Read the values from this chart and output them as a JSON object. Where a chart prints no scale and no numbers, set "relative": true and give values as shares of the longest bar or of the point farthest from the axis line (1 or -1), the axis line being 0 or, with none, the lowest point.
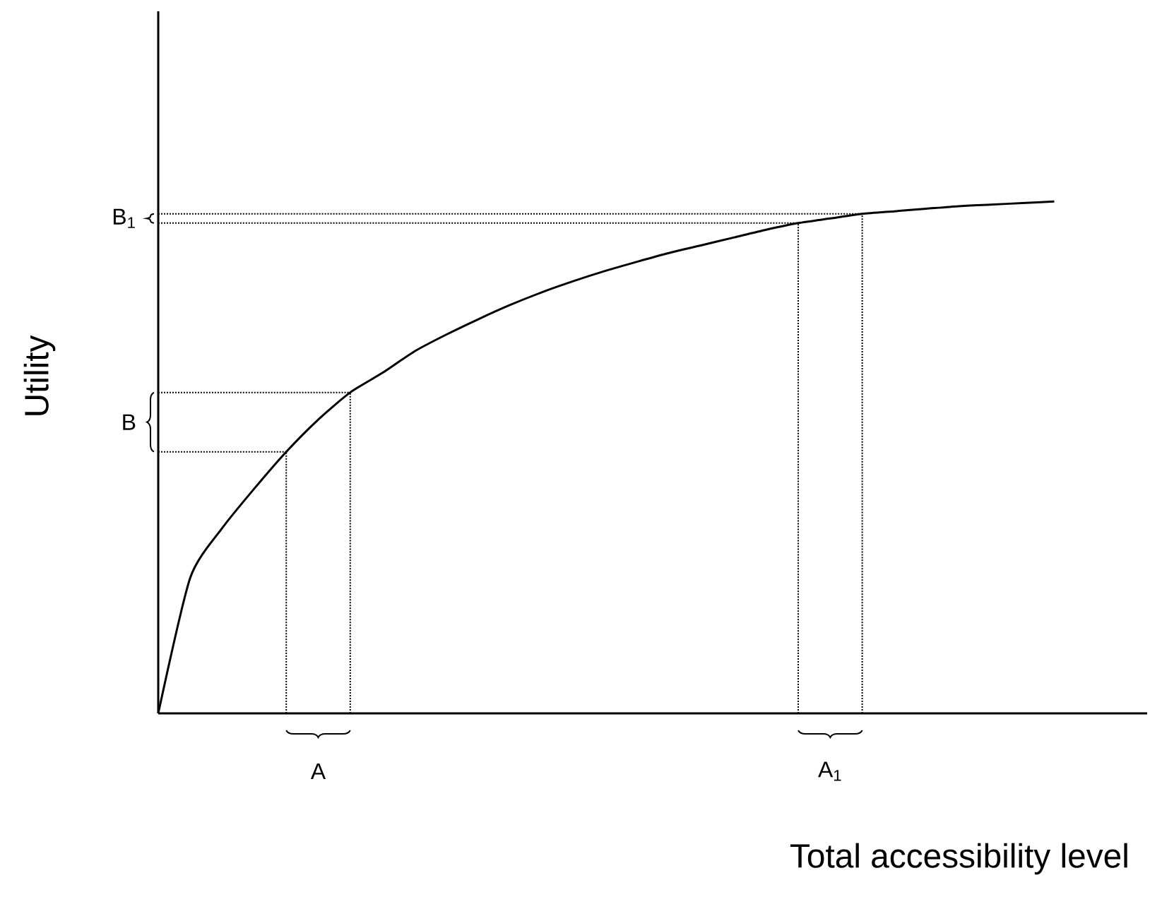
{
  "chart_data": {
    "type": "line",
    "relative": true,
    "xlabel": "Total accessibility level",
    "ylabel": "Utility",
    "categories": [
      null,
      null,
      null,
      null,
      null,
      null,
      null,
      null,
      null,
      null,
      null,
      null,
      null,
      null,
      null,
      null,
      null,
      null,
      null,
      null,
      null,
      null,
      null,
      null,
      null,
      null,
      null,
      null,
      null,
      null,
      null
    ],
    "series": [
      {
        "color": "#000000",
        "values": [
          0,
          0.265,
          0.362,
          0.439,
          0.511,
          0.574,
          0.627,
          0.665,
          0.707,
          0.74,
          0.77,
          0.798,
          0.823,
          0.845,
          0.865,
          0.883,
          0.9,
          0.915,
          0.93,
          0.945,
          0.958,
          0.967,
          0.976,
          0.981,
          0.986,
          0.991,
          0.994,
          0.997,
          1,
          null,
          null
        ]
      }
    ],
    "ref_lines": [
      {
        "axis": "y",
        "value": 0.511,
        "line_style": "dotted"
      },
      {
        "axis": "y",
        "value": 0.627,
        "line_style": "dotted"
      },
      {
        "axis": "y",
        "value": 0.958,
        "line_style": "dotted"
      },
      {
        "axis": "y",
        "value": 0.976,
        "line_style": "dotted"
      }
    ],
    "annotations": [
      "A",
      "A$_{1}$",
      "B",
      "B$_{1}$"
    ]
  }
}
